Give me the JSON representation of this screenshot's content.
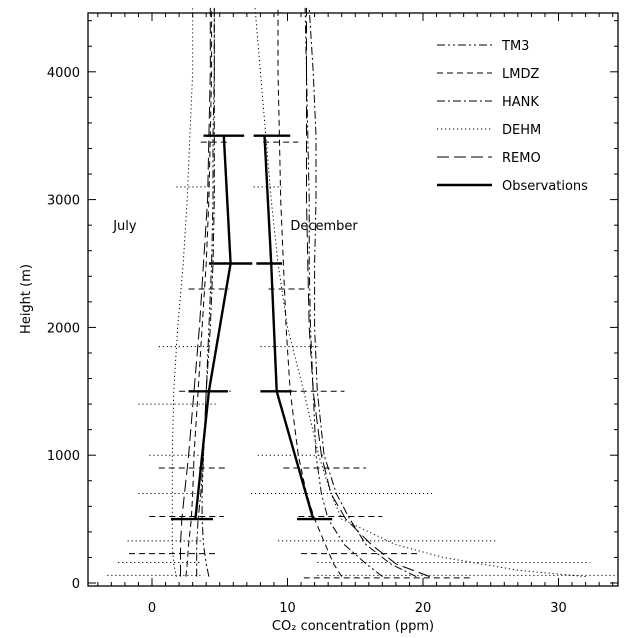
{
  "chart_data": {
    "type": "line",
    "title": "",
    "xlabel": "CO₂ concentration (ppm)",
    "ylabel": "Height (m)",
    "xlim": [
      -5,
      35
    ],
    "ylim": [
      0,
      4500
    ],
    "x_ticks": [
      0,
      10,
      20,
      30
    ],
    "y_ticks": [
      0,
      1000,
      2000,
      3000,
      4000
    ],
    "grid": false,
    "legend_position": "top-right",
    "annotations": [
      {
        "text": "July",
        "x": -2,
        "y": 2800
      },
      {
        "text": "December",
        "x": 12.7,
        "y": 2800
      }
    ],
    "series": [
      {
        "name": "TM3",
        "month": "July",
        "dash": "dashdotdot",
        "width": 1,
        "points": [
          [
            4.2,
            50
          ],
          [
            4.0,
            150
          ],
          [
            3.8,
            300
          ],
          [
            3.7,
            500
          ],
          [
            3.7,
            700
          ],
          [
            3.8,
            1000
          ],
          [
            4.0,
            1500
          ],
          [
            4.2,
            2000
          ],
          [
            4.4,
            2500
          ],
          [
            4.5,
            3000
          ],
          [
            4.5,
            3500
          ],
          [
            4.6,
            4000
          ],
          [
            4.6,
            4500
          ]
        ]
      },
      {
        "name": "TM3",
        "month": "December",
        "dash": "dashdotdot",
        "width": 1,
        "points": [
          [
            17.0,
            50
          ],
          [
            15.8,
            150
          ],
          [
            14.2,
            300
          ],
          [
            13.0,
            500
          ],
          [
            12.5,
            700
          ],
          [
            12.1,
            1000
          ],
          [
            11.9,
            1500
          ],
          [
            11.7,
            2000
          ],
          [
            11.6,
            2500
          ],
          [
            11.6,
            3000
          ],
          [
            11.5,
            3500
          ],
          [
            11.4,
            4000
          ],
          [
            11.3,
            4500
          ]
        ]
      },
      {
        "name": "LMDZ",
        "month": "July",
        "dash": "dash",
        "width": 1,
        "points": [
          [
            2.5,
            50
          ],
          [
            2.6,
            150
          ],
          [
            2.7,
            300
          ],
          [
            2.9,
            500
          ],
          [
            3.0,
            700
          ],
          [
            3.1,
            1000
          ],
          [
            3.4,
            1500
          ],
          [
            3.7,
            2000
          ],
          [
            4.0,
            2500
          ],
          [
            4.2,
            3000
          ],
          [
            4.3,
            3500
          ],
          [
            4.4,
            4000
          ],
          [
            4.4,
            4500
          ]
        ]
      },
      {
        "name": "LMDZ",
        "month": "December",
        "dash": "dash",
        "width": 1,
        "points": [
          [
            14.0,
            50
          ],
          [
            13.4,
            150
          ],
          [
            12.8,
            300
          ],
          [
            12.0,
            500
          ],
          [
            11.4,
            700
          ],
          [
            10.8,
            1000
          ],
          [
            10.2,
            1500
          ],
          [
            9.9,
            2000
          ],
          [
            9.7,
            2500
          ],
          [
            9.5,
            3000
          ],
          [
            9.4,
            3500
          ],
          [
            9.3,
            4000
          ],
          [
            9.3,
            4500
          ]
        ]
      },
      {
        "name": "HANK",
        "month": "July",
        "dash": "dashdot",
        "width": 1,
        "points": [
          [
            3.3,
            50
          ],
          [
            3.3,
            150
          ],
          [
            3.3,
            300
          ],
          [
            3.4,
            500
          ],
          [
            3.6,
            700
          ],
          [
            3.8,
            1000
          ],
          [
            4.0,
            1500
          ],
          [
            4.3,
            2000
          ],
          [
            4.5,
            2500
          ],
          [
            4.6,
            3000
          ],
          [
            4.6,
            3500
          ],
          [
            4.6,
            4000
          ],
          [
            4.6,
            4500
          ]
        ]
      },
      {
        "name": "HANK",
        "month": "December",
        "dash": "dashdot",
        "width": 1,
        "points": [
          [
            19.5,
            50
          ],
          [
            17.6,
            150
          ],
          [
            15.8,
            300
          ],
          [
            14.6,
            500
          ],
          [
            13.6,
            700
          ],
          [
            12.7,
            1000
          ],
          [
            12.2,
            1500
          ],
          [
            12.0,
            2000
          ],
          [
            12.0,
            2500
          ],
          [
            12.1,
            3000
          ],
          [
            12.1,
            3500
          ],
          [
            11.9,
            4000
          ],
          [
            11.6,
            4500
          ]
        ]
      },
      {
        "name": "DEHM",
        "month": "July",
        "dash": "dot",
        "width": 1,
        "points": [
          [
            1.8,
            50
          ],
          [
            1.6,
            150
          ],
          [
            1.5,
            300
          ],
          [
            1.5,
            500
          ],
          [
            1.5,
            700
          ],
          [
            1.5,
            1000
          ],
          [
            1.6,
            1500
          ],
          [
            1.9,
            2000
          ],
          [
            2.3,
            2500
          ],
          [
            2.6,
            3000
          ],
          [
            2.8,
            3500
          ],
          [
            3.0,
            4000
          ],
          [
            3.0,
            4500
          ]
        ]
      },
      {
        "name": "DEHM",
        "month": "December",
        "dash": "dot",
        "width": 1,
        "points": [
          [
            32.0,
            50
          ],
          [
            27.0,
            100
          ],
          [
            21.5,
            200
          ],
          [
            18.0,
            300
          ],
          [
            16.0,
            400
          ],
          [
            14.0,
            500
          ],
          [
            13.2,
            700
          ],
          [
            12.3,
            1000
          ],
          [
            11.2,
            1500
          ],
          [
            10.0,
            2000
          ],
          [
            9.3,
            2500
          ],
          [
            8.8,
            3000
          ],
          [
            8.4,
            3500
          ],
          [
            8.0,
            4000
          ],
          [
            7.6,
            4500
          ]
        ]
      },
      {
        "name": "REMO",
        "month": "July",
        "dash": "longdash",
        "width": 1,
        "points": [
          [
            2.1,
            50
          ],
          [
            2.1,
            150
          ],
          [
            2.1,
            300
          ],
          [
            2.2,
            500
          ],
          [
            2.4,
            700
          ],
          [
            2.7,
            1000
          ],
          [
            3.1,
            1500
          ],
          [
            3.5,
            2000
          ],
          [
            3.8,
            2500
          ],
          [
            4.1,
            3000
          ],
          [
            4.2,
            3500
          ],
          [
            4.3,
            4000
          ],
          [
            4.3,
            4500
          ]
        ]
      },
      {
        "name": "REMO",
        "month": "December",
        "dash": "longdash",
        "width": 1,
        "points": [
          [
            20.5,
            50
          ],
          [
            18.0,
            150
          ],
          [
            16.2,
            300
          ],
          [
            14.3,
            500
          ],
          [
            13.2,
            700
          ],
          [
            12.5,
            1000
          ],
          [
            11.9,
            1500
          ],
          [
            11.6,
            2000
          ],
          [
            11.5,
            2500
          ],
          [
            11.4,
            3000
          ],
          [
            11.4,
            3500
          ],
          [
            11.4,
            4000
          ],
          [
            11.4,
            4500
          ]
        ]
      },
      {
        "name": "Observations",
        "month": "July",
        "dash": "solid",
        "width": 2.4,
        "points": [
          [
            3.2,
            500
          ],
          [
            4.2,
            1500
          ],
          [
            5.8,
            2500
          ],
          [
            5.3,
            3500
          ]
        ]
      },
      {
        "name": "Observations",
        "month": "December",
        "dash": "solid",
        "width": 2.4,
        "points": [
          [
            11.9,
            500
          ],
          [
            9.2,
            1500
          ],
          [
            8.8,
            2500
          ],
          [
            8.3,
            3500
          ]
        ]
      }
    ],
    "error_bars": [
      {
        "month": "July",
        "dash": "solid",
        "y": 3500,
        "xmin": 3.8,
        "xmax": 6.8
      },
      {
        "month": "July",
        "dash": "solid",
        "y": 2500,
        "xmin": 4.2,
        "xmax": 7.4
      },
      {
        "month": "July",
        "dash": "solid",
        "y": 1500,
        "xmin": 2.7,
        "xmax": 5.6
      },
      {
        "month": "July",
        "dash": "solid",
        "y": 500,
        "xmin": 1.4,
        "xmax": 4.5
      },
      {
        "month": "December",
        "dash": "solid",
        "y": 3500,
        "xmin": 7.5,
        "xmax": 10.2
      },
      {
        "month": "December",
        "dash": "solid",
        "y": 2500,
        "xmin": 7.7,
        "xmax": 9.6
      },
      {
        "month": "December",
        "dash": "solid",
        "y": 1500,
        "xmin": 8.0,
        "xmax": 10.3
      },
      {
        "month": "December",
        "dash": "solid",
        "y": 500,
        "xmin": 10.7,
        "xmax": 13.3
      },
      {
        "month": "July",
        "dash": "dash",
        "y": 3450,
        "xmin": 3.6,
        "xmax": 5.6
      },
      {
        "month": "July",
        "dash": "dash",
        "y": 2300,
        "xmin": 2.7,
        "xmax": 5.7
      },
      {
        "month": "July",
        "dash": "dash",
        "y": 1500,
        "xmin": 2.0,
        "xmax": 5.8
      },
      {
        "month": "July",
        "dash": "dash",
        "y": 900,
        "xmin": 0.5,
        "xmax": 5.6
      },
      {
        "month": "July",
        "dash": "dash",
        "y": 520,
        "xmin": -0.2,
        "xmax": 5.3
      },
      {
        "month": "July",
        "dash": "dash",
        "y": 230,
        "xmin": -1.7,
        "xmax": 4.8
      },
      {
        "month": "December",
        "dash": "dash",
        "y": 3450,
        "xmin": 8.2,
        "xmax": 10.8
      },
      {
        "month": "December",
        "dash": "dash",
        "y": 2300,
        "xmin": 8.6,
        "xmax": 11.4
      },
      {
        "month": "December",
        "dash": "dash",
        "y": 1500,
        "xmin": 9.5,
        "xmax": 14.2
      },
      {
        "month": "December",
        "dash": "dash",
        "y": 900,
        "xmin": 9.7,
        "xmax": 15.8
      },
      {
        "month": "December",
        "dash": "dash",
        "y": 520,
        "xmin": 10.8,
        "xmax": 17.0
      },
      {
        "month": "December",
        "dash": "dash",
        "y": 230,
        "xmin": 11.0,
        "xmax": 19.8
      },
      {
        "month": "December",
        "dash": "dash",
        "y": 40,
        "xmin": 11.2,
        "xmax": 23.5
      },
      {
        "month": "July",
        "dash": "dot",
        "y": 3100,
        "xmin": 1.8,
        "xmax": 4.3
      },
      {
        "month": "July",
        "dash": "dot",
        "y": 1850,
        "xmin": 0.5,
        "xmax": 4.3
      },
      {
        "month": "July",
        "dash": "dot",
        "y": 1400,
        "xmin": -1.0,
        "xmax": 4.8
      },
      {
        "month": "July",
        "dash": "dot",
        "y": 1000,
        "xmin": -0.2,
        "xmax": 3.6
      },
      {
        "month": "July",
        "dash": "dot",
        "y": 700,
        "xmin": -1.0,
        "xmax": 3.6
      },
      {
        "month": "July",
        "dash": "dot",
        "y": 330,
        "xmin": -1.8,
        "xmax": 3.8
      },
      {
        "month": "July",
        "dash": "dot",
        "y": 160,
        "xmin": -2.5,
        "xmax": 3.5
      },
      {
        "month": "July",
        "dash": "dot",
        "y": 60,
        "xmin": -3.3,
        "xmax": 3.8
      },
      {
        "month": "December",
        "dash": "dot",
        "y": 3100,
        "xmin": 7.5,
        "xmax": 9.6
      },
      {
        "month": "December",
        "dash": "dot",
        "y": 1850,
        "xmin": 8.0,
        "xmax": 12.3
      },
      {
        "month": "December",
        "dash": "dot",
        "y": 1000,
        "xmin": 7.8,
        "xmax": 12.7
      },
      {
        "month": "December",
        "dash": "dot",
        "y": 700,
        "xmin": 7.3,
        "xmax": 20.8
      },
      {
        "month": "December",
        "dash": "dot",
        "y": 330,
        "xmin": 9.3,
        "xmax": 25.5
      },
      {
        "month": "December",
        "dash": "dot",
        "y": 160,
        "xmin": 12.2,
        "xmax": 32.3
      },
      {
        "month": "December",
        "dash": "dot",
        "y": 60,
        "xmin": 12.2,
        "xmax": 35.0
      }
    ]
  }
}
